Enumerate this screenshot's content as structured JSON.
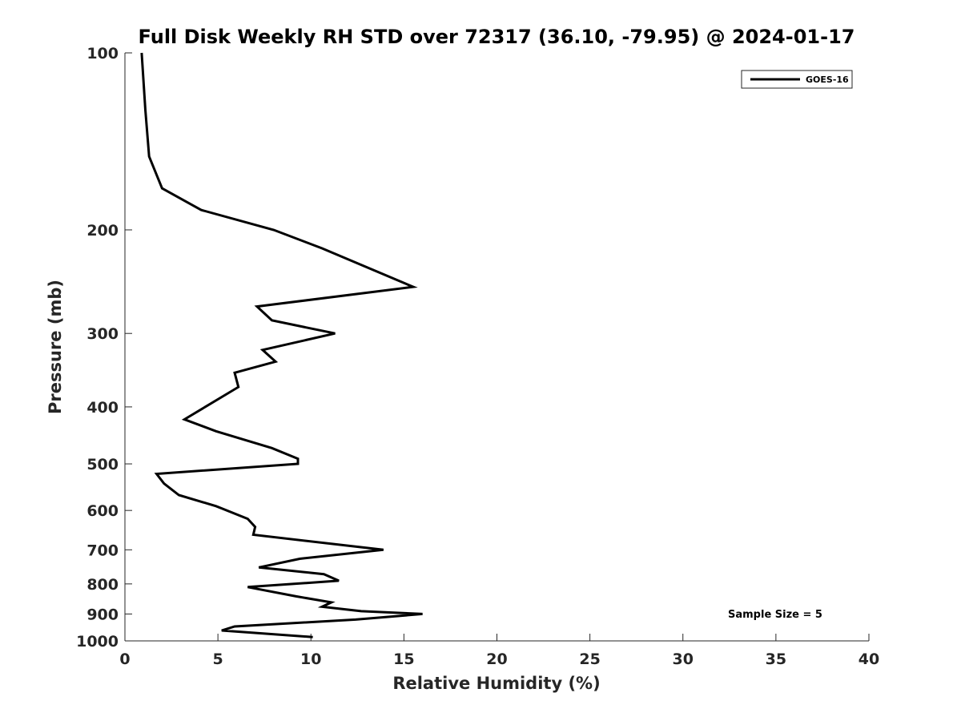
{
  "chart_data": {
    "type": "line",
    "title": "Full Disk Weekly RH STD over 72317 (36.10, -79.95) @ 2024-01-17",
    "xlabel": "Relative Humidity (%)",
    "ylabel": "Pressure (mb)",
    "xlim": [
      0,
      40
    ],
    "ylim": [
      100,
      1000
    ],
    "y_scale": "log",
    "y_inverted": true,
    "x_ticks": [
      "0",
      "5",
      "10",
      "15",
      "20",
      "25",
      "30",
      "35",
      "40"
    ],
    "y_ticks": [
      "100",
      "200",
      "300",
      "400",
      "500",
      "600",
      "700",
      "800",
      "900",
      "1000"
    ],
    "grid": false,
    "legend_position": "top-right",
    "series": [
      {
        "name": "GOES-16",
        "color": "#000000",
        "points": [
          [
            0.9,
            100
          ],
          [
            1.1,
            125
          ],
          [
            1.3,
            150
          ],
          [
            2.0,
            170
          ],
          [
            4.1,
            185
          ],
          [
            8.0,
            200
          ],
          [
            10.6,
            215
          ],
          [
            15.5,
            250
          ],
          [
            7.1,
            270
          ],
          [
            7.9,
            285
          ],
          [
            11.3,
            300
          ],
          [
            7.4,
            320
          ],
          [
            8.1,
            335
          ],
          [
            5.9,
            350
          ],
          [
            6.1,
            370
          ],
          [
            3.2,
            420
          ],
          [
            4.9,
            440
          ],
          [
            7.9,
            470
          ],
          [
            9.3,
            490
          ],
          [
            9.3,
            500
          ],
          [
            1.7,
            520
          ],
          [
            2.1,
            540
          ],
          [
            2.9,
            565
          ],
          [
            4.9,
            590
          ],
          [
            6.6,
            620
          ],
          [
            7.0,
            640
          ],
          [
            6.9,
            660
          ],
          [
            13.9,
            700
          ],
          [
            9.4,
            725
          ],
          [
            7.2,
            750
          ],
          [
            10.7,
            770
          ],
          [
            11.5,
            790
          ],
          [
            6.6,
            810
          ],
          [
            9.2,
            840
          ],
          [
            11.1,
            860
          ],
          [
            10.6,
            875
          ],
          [
            12.7,
            890
          ],
          [
            16.0,
            900
          ],
          [
            12.4,
            920
          ],
          [
            5.9,
            945
          ],
          [
            5.2,
            960
          ],
          [
            10.1,
            985
          ]
        ]
      }
    ],
    "annotation": "Sample Size = 5"
  }
}
